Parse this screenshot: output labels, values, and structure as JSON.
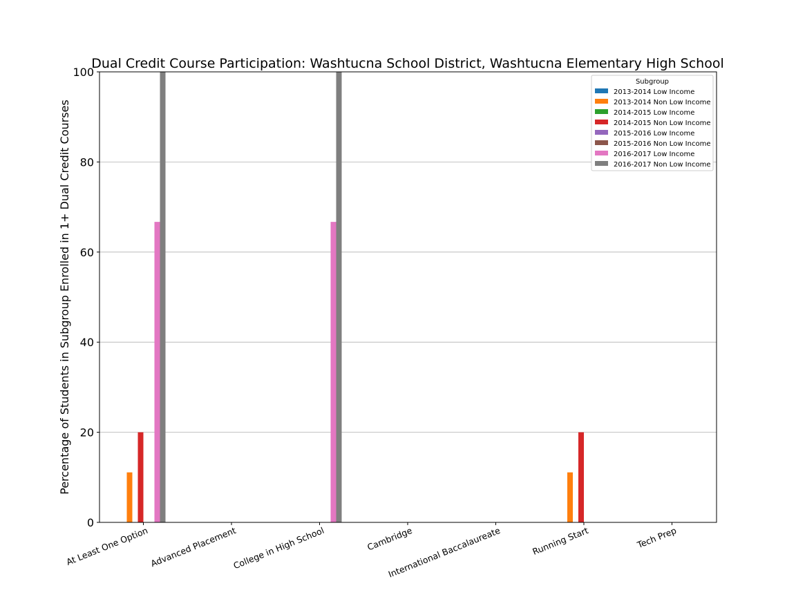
{
  "chart_data": {
    "type": "bar",
    "title": "Dual Credit Course Participation: Washtucna School District, Washtucna Elementary High School",
    "xlabel": "",
    "ylabel": "Percentage of Students in Subgroup Enrolled in 1+ Dual Credit Courses",
    "ylim": [
      0,
      100
    ],
    "yticks": [
      0,
      20,
      40,
      60,
      80,
      100
    ],
    "grid": "horizontal",
    "legend": {
      "title": "Subgroup",
      "placement": "top-right"
    },
    "categories": [
      "At Least One Option",
      "Advanced Placement",
      "College in High School",
      "Cambridge",
      "International Baccalaureate",
      "Running Start",
      "Tech Prep"
    ],
    "series": [
      {
        "name": "2013-2014 Low Income",
        "color": "#1f77b4",
        "values": [
          0,
          0,
          0,
          0,
          0,
          0,
          0
        ]
      },
      {
        "name": "2013-2014 Non Low Income",
        "color": "#ff7f0e",
        "values": [
          11.1,
          0,
          0,
          0,
          0,
          11.1,
          0
        ]
      },
      {
        "name": "2014-2015 Low Income",
        "color": "#2ca02c",
        "values": [
          0,
          0,
          0,
          0,
          0,
          0,
          0
        ]
      },
      {
        "name": "2014-2015 Non Low Income",
        "color": "#d62728",
        "values": [
          20,
          0,
          0,
          0,
          0,
          20,
          0
        ]
      },
      {
        "name": "2015-2016 Low Income",
        "color": "#9467bd",
        "values": [
          0,
          0,
          0,
          0,
          0,
          0,
          0
        ]
      },
      {
        "name": "2015-2016 Non Low Income",
        "color": "#8c564b",
        "values": [
          0,
          0,
          0,
          0,
          0,
          0,
          0
        ]
      },
      {
        "name": "2016-2017 Low Income",
        "color": "#e377c2",
        "values": [
          66.7,
          0,
          66.7,
          0,
          0,
          0,
          0
        ]
      },
      {
        "name": "2016-2017 Non Low Income",
        "color": "#7f7f7f",
        "values": [
          100,
          0,
          100,
          0,
          0,
          0,
          0
        ]
      }
    ]
  }
}
